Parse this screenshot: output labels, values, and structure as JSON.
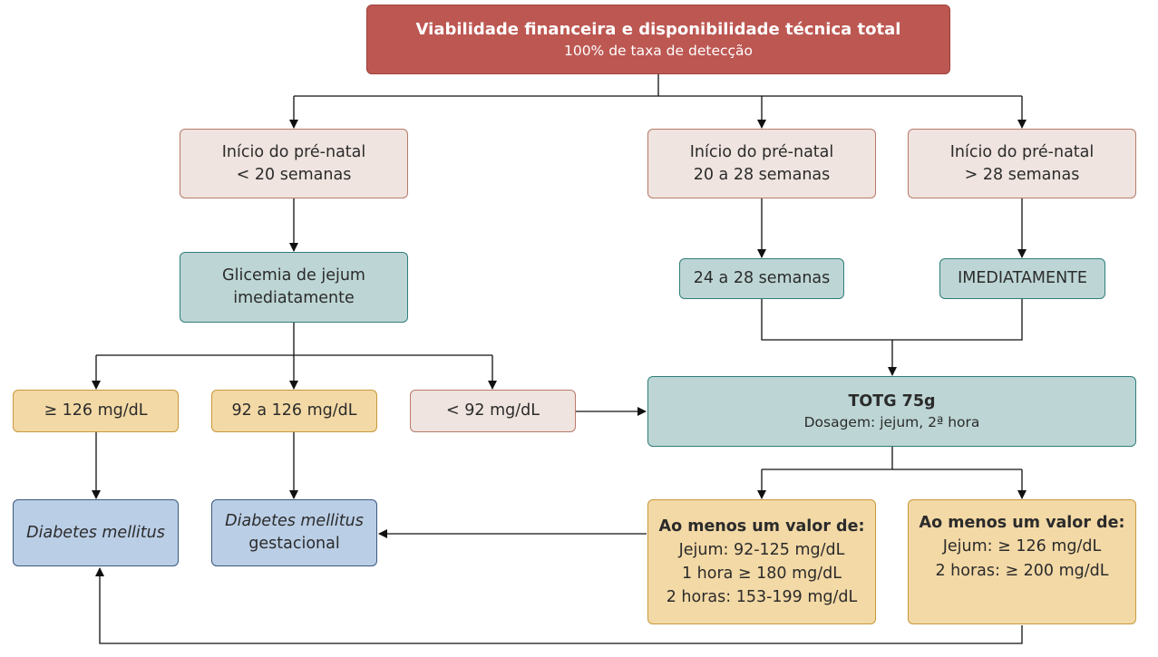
{
  "header": {
    "title": "Viabilidade financeira e disponibilidade técnica total",
    "subtitle": "100% de taxa de detecção"
  },
  "prenatal": [
    {
      "line1": "Início do pré-natal",
      "line2": "< 20 semanas"
    },
    {
      "line1": "Início do pré-natal",
      "line2": "20 a 28 semanas"
    },
    {
      "line1": "Início do pré-natal",
      "line2": "> 28 semanas"
    }
  ],
  "glicemia": {
    "line1": "Glicemia de jejum",
    "line2": "imediatamente"
  },
  "timing": {
    "weeks": "24 a 28 semanas",
    "immediate": "IMEDIATAMENTE"
  },
  "results": {
    "high": "≥ 126 mg/dL",
    "mid": "92 a 126 mg/dL",
    "low": "< 92 mg/dL"
  },
  "totg": {
    "title": "TOTG 75g",
    "subtitle": "Dosagem: jejum, 2ª hora"
  },
  "diagnosis": {
    "dm": "Diabetes mellitus",
    "dmg_line1": "Diabetes mellitus",
    "dmg_line2": "gestacional"
  },
  "criteria_gestational": {
    "title": "Ao menos um valor de:",
    "lines": [
      "Jejum: 92-125 mg/dL",
      "1 hora ≥ 180 mg/dL",
      "2 horas: 153-199 mg/dL"
    ]
  },
  "criteria_overt": {
    "title": "Ao menos um valor de:",
    "lines": [
      "Jejum: ≥ 126 mg/dL",
      "2 horas: ≥ 200 mg/dL"
    ]
  },
  "colors": {
    "header": "#bd5752",
    "prenatal": "#efe4df",
    "step": "#bdd6d5",
    "criteria": "#f3d9a6",
    "diagnosis": "#bacee6"
  }
}
